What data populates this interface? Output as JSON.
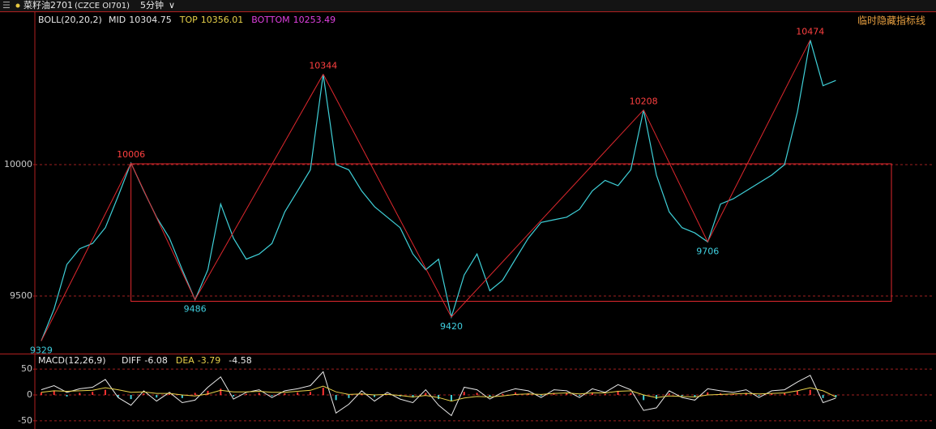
{
  "header": {
    "symbol": "菜籽油2701",
    "code": "(CZCE OI701)",
    "period": "5分钟"
  },
  "chart_data": [
    {
      "type": "line",
      "indicator": "BOLL(20,20,2)",
      "indicator_legend": [
        {
          "name": "MID",
          "value": 10304.75,
          "color": "#e8e8e8"
        },
        {
          "name": "TOP",
          "value": 10356.01,
          "color": "#e8d24a"
        },
        {
          "name": "BOTTOM",
          "value": 10253.49,
          "color": "#e040e0"
        }
      ],
      "annotation": "临时隐藏指标线",
      "categories": [
        null,
        null,
        null,
        null,
        null,
        null,
        null,
        null,
        null,
        null,
        null,
        null,
        null,
        null,
        null,
        null,
        null,
        null,
        null,
        null,
        null,
        null,
        null,
        null,
        null,
        null,
        null,
        null,
        null,
        null,
        null,
        null,
        null,
        null,
        null,
        null,
        null,
        null,
        null,
        null,
        null,
        null,
        null,
        null,
        null,
        null,
        null,
        null,
        null,
        null,
        null,
        null,
        null,
        null,
        null,
        null,
        null,
        null,
        null,
        null,
        null,
        null,
        null,
        null,
        null,
        null,
        null,
        null,
        null,
        null
      ],
      "series": [
        {
          "name": "price",
          "color": "#3fd0d8",
          "values": [
            9329,
            9450,
            9620,
            9680,
            9700,
            9760,
            9880,
            10006,
            9900,
            9800,
            9720,
            9600,
            9486,
            9600,
            9850,
            9720,
            9640,
            9660,
            9700,
            9820,
            9900,
            9980,
            10344,
            10000,
            9980,
            9900,
            9840,
            9800,
            9760,
            9660,
            9600,
            9640,
            9420,
            9580,
            9660,
            9520,
            9560,
            9640,
            9720,
            9780,
            9790,
            9800,
            9830,
            9900,
            9940,
            9920,
            9980,
            10208,
            9960,
            9820,
            9760,
            9740,
            9706,
            9850,
            9870,
            9900,
            9930,
            9960,
            10000,
            10200,
            10474,
            10300,
            10320,
            null,
            null,
            null,
            null,
            null,
            null,
            null
          ]
        },
        {
          "name": "zigzag",
          "color": "#e0282e",
          "values": [
            9329,
            null,
            null,
            null,
            null,
            null,
            null,
            10006,
            null,
            null,
            null,
            null,
            9486,
            null,
            null,
            null,
            null,
            null,
            null,
            null,
            null,
            null,
            10344,
            null,
            null,
            null,
            null,
            null,
            null,
            null,
            null,
            null,
            9420,
            null,
            null,
            null,
            null,
            null,
            null,
            null,
            null,
            null,
            null,
            null,
            null,
            null,
            null,
            10208,
            null,
            null,
            null,
            null,
            9706,
            null,
            null,
            null,
            null,
            null,
            null,
            null,
            10474,
            null,
            null,
            null,
            null,
            null,
            null,
            null,
            null,
            null
          ]
        }
      ],
      "peak_color": "#ff4040",
      "trough_color": "#40d0e0",
      "box": {
        "low": 9480,
        "high": 10003,
        "color": "#e0282e"
      },
      "ylim": [
        9281,
        10583
      ],
      "yticks": [
        9500,
        10000
      ],
      "grid": true
    },
    {
      "type": "macd",
      "indicator": "MACD(12,26,9)",
      "indicator_legend": [
        {
          "name": "DIFF",
          "value": -6.08,
          "color": "#e8e8e8"
        },
        {
          "name": "DEA",
          "value": -3.79,
          "color": "#e8d24a"
        },
        {
          "name": "",
          "value": -4.58,
          "color": "#e8e8e8"
        }
      ],
      "series": [
        {
          "name": "MACD",
          "color": "#ff3232",
          "negative_color": "#3fd0d8",
          "values": [
            5,
            8,
            -3,
            4,
            6,
            10,
            -4,
            -8,
            3,
            -5,
            2,
            -6,
            4,
            8,
            12,
            -3,
            2,
            4,
            -2,
            3,
            5,
            6,
            14,
            -10,
            -6,
            3,
            -4,
            2,
            -3,
            -5,
            4,
            -8,
            -12,
            6,
            4,
            -3,
            2,
            5,
            3,
            -2,
            4,
            3,
            -2,
            5,
            2,
            8,
            4,
            -10,
            -8,
            3,
            -2,
            -4,
            5,
            3,
            2,
            4,
            -2,
            3,
            4,
            8,
            10,
            -6,
            -4.58,
            null,
            null,
            null,
            null,
            null,
            null,
            null
          ]
        },
        {
          "name": "DIFF",
          "color": "#e8e8e8",
          "values": [
            10,
            18,
            5,
            12,
            15,
            30,
            -5,
            -20,
            8,
            -12,
            5,
            -15,
            -10,
            15,
            35,
            -8,
            5,
            10,
            -5,
            8,
            12,
            18,
            45,
            -35,
            -18,
            8,
            -12,
            5,
            -8,
            -15,
            10,
            -20,
            -40,
            15,
            10,
            -8,
            5,
            12,
            8,
            -5,
            10,
            8,
            -5,
            12,
            5,
            20,
            10,
            -30,
            -25,
            8,
            -5,
            -10,
            12,
            8,
            5,
            10,
            -5,
            8,
            10,
            25,
            38,
            -15,
            -6.08,
            null,
            null,
            null,
            null,
            null,
            null,
            null
          ]
        },
        {
          "name": "DEA",
          "color": "#e8d24a",
          "values": [
            5,
            8,
            7,
            8,
            9,
            14,
            10,
            5,
            6,
            3,
            3,
            0,
            -2,
            2,
            9,
            6,
            6,
            7,
            5,
            5,
            7,
            9,
            17,
            6,
            1,
            2,
            0,
            1,
            -1,
            -4,
            -1,
            -5,
            -12,
            -6,
            -3,
            -4,
            -2,
            1,
            2,
            1,
            3,
            4,
            2,
            4,
            4,
            7,
            8,
            0,
            -5,
            -2,
            -3,
            -4,
            0,
            1,
            2,
            3,
            2,
            3,
            4,
            8,
            14,
            8,
            -3.79,
            null,
            null,
            null,
            null,
            null,
            null,
            null
          ]
        }
      ],
      "ylim": [
        -55,
        77
      ],
      "yticks": [
        50,
        0,
        -50
      ],
      "grid": true
    }
  ]
}
